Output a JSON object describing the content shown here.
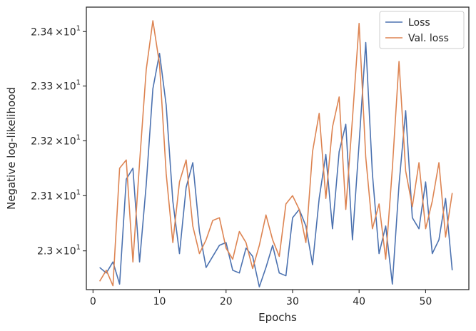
{
  "chart_data": {
    "type": "line",
    "xlabel": "Epochs",
    "ylabel": "Negative log-likelihood",
    "xlim": [
      -1,
      56.5
    ],
    "ylim": [
      22.93,
      23.445
    ],
    "y_scale": "log",
    "x_ticks": [
      0,
      10,
      20,
      30,
      40,
      50
    ],
    "x_tick_labels": [
      "0",
      "10",
      "20",
      "30",
      "40",
      "50"
    ],
    "y_ticks": [
      23.0,
      23.1,
      23.2,
      23.3,
      23.4
    ],
    "y_tick_labels": [
      {
        "mantissa": "2.3",
        "exponent": "1"
      },
      {
        "mantissa": "2.31",
        "exponent": "1"
      },
      {
        "mantissa": "2.32",
        "exponent": "1"
      },
      {
        "mantissa": "2.33",
        "exponent": "1"
      },
      {
        "mantissa": "2.34",
        "exponent": "1"
      }
    ],
    "y_tick_times": "×10",
    "grid": false,
    "legend_position": "top-right",
    "series": [
      {
        "name": "Loss",
        "color": "#4c72b0",
        "x": [
          1,
          2,
          3,
          4,
          5,
          6,
          7,
          8,
          9,
          10,
          11,
          12,
          13,
          14,
          15,
          16,
          17,
          18,
          19,
          20,
          21,
          22,
          23,
          24,
          25,
          26,
          27,
          28,
          29,
          30,
          31,
          32,
          33,
          34,
          35,
          36,
          37,
          38,
          39,
          40,
          41,
          42,
          43,
          44,
          45,
          46,
          47,
          48,
          49,
          50,
          51,
          52,
          53,
          54
        ],
        "y": [
          22.97,
          22.96,
          22.98,
          22.94,
          23.13,
          23.15,
          22.98,
          23.12,
          23.295,
          23.36,
          23.265,
          23.09,
          22.995,
          23.115,
          23.16,
          23.035,
          22.97,
          22.99,
          23.01,
          23.015,
          22.965,
          22.96,
          23.005,
          22.99,
          22.935,
          22.97,
          23.01,
          22.96,
          22.955,
          23.06,
          23.075,
          23.045,
          22.975,
          23.095,
          23.175,
          23.04,
          23.18,
          23.23,
          23.02,
          23.195,
          23.38,
          23.14,
          22.995,
          23.045,
          22.94,
          23.12,
          23.255,
          23.06,
          23.04,
          23.125,
          22.995,
          23.02,
          23.095,
          22.965
        ]
      },
      {
        "name": "Val. loss",
        "color": "#dd8452",
        "x": [
          1,
          2,
          3,
          4,
          5,
          6,
          7,
          8,
          9,
          10,
          11,
          12,
          13,
          14,
          15,
          16,
          17,
          18,
          19,
          20,
          21,
          22,
          23,
          24,
          25,
          26,
          27,
          28,
          29,
          30,
          31,
          32,
          33,
          34,
          35,
          36,
          37,
          38,
          39,
          40,
          41,
          42,
          43,
          44,
          45,
          46,
          47,
          48,
          49,
          50,
          51,
          52,
          53,
          54
        ],
        "y": [
          22.945,
          22.965,
          22.937,
          23.15,
          23.165,
          22.98,
          23.16,
          23.33,
          23.42,
          23.34,
          23.14,
          23.015,
          23.125,
          23.165,
          23.045,
          22.995,
          23.02,
          23.055,
          23.06,
          23.005,
          22.985,
          23.035,
          23.015,
          22.968,
          23.01,
          23.065,
          23.02,
          22.99,
          23.085,
          23.1,
          23.075,
          23.015,
          23.18,
          23.25,
          23.095,
          23.225,
          23.28,
          23.075,
          23.24,
          23.415,
          23.17,
          23.04,
          23.085,
          22.985,
          23.15,
          23.345,
          23.145,
          23.08,
          23.16,
          23.04,
          23.09,
          23.16,
          23.025,
          23.105
        ]
      }
    ]
  }
}
